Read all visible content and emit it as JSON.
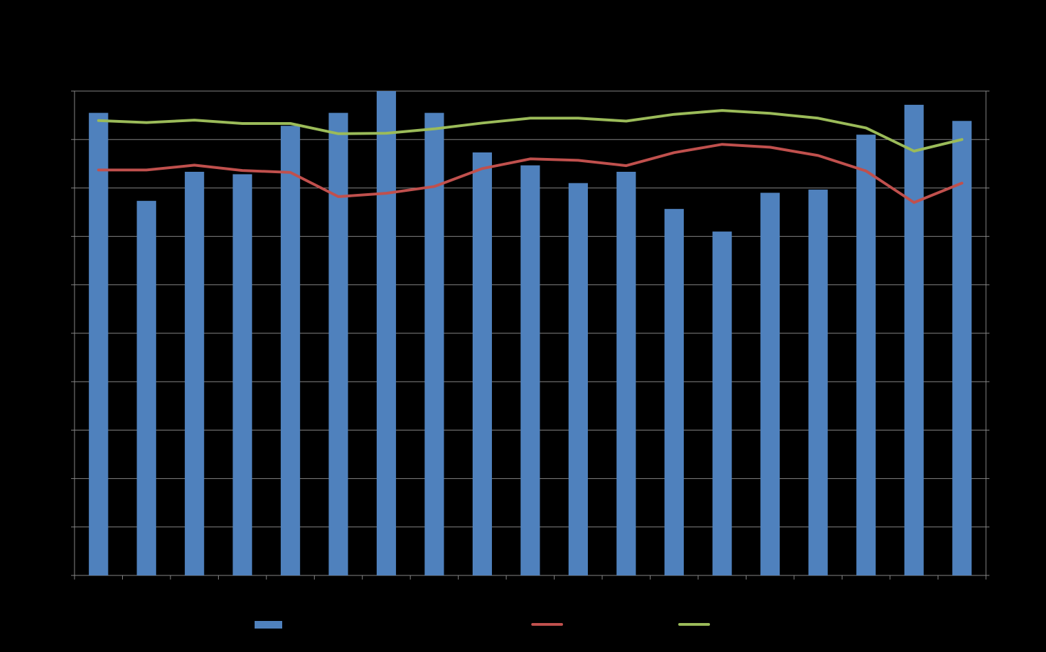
{
  "chart_data": {
    "type": "bar",
    "title": "",
    "xlabel": "",
    "ylabel": "",
    "grid": true,
    "legend_position": "bottom",
    "bar_value_range": [
      0,
      6
    ],
    "line_value_range": [
      0,
      10
    ],
    "categories": [
      "",
      "",
      "",
      "",
      "",
      "",
      "",
      "",
      "",
      "",
      "",
      "",
      "",
      "",
      "",
      "",
      "",
      "",
      ""
    ],
    "series": [
      {
        "type": "bar",
        "color": "#4F81BD",
        "values": [
          5.73,
          4.64,
          5.0,
          4.97,
          5.57,
          5.73,
          6.0,
          5.73,
          5.24,
          5.08,
          4.86,
          5.0,
          4.54,
          4.26,
          4.74,
          4.78,
          5.46,
          5.83,
          5.63
        ]
      },
      {
        "type": "line",
        "color": "#C0504D",
        "values": [
          8.37,
          8.37,
          8.47,
          8.36,
          8.32,
          7.82,
          7.89,
          8.03,
          8.4,
          8.6,
          8.57,
          8.46,
          8.73,
          8.9,
          8.84,
          8.67,
          8.35,
          7.7,
          8.1
        ]
      },
      {
        "type": "line",
        "color": "#9BBB59",
        "values": [
          9.39,
          9.35,
          9.4,
          9.33,
          9.33,
          9.12,
          9.13,
          9.22,
          9.34,
          9.44,
          9.44,
          9.38,
          9.52,
          9.6,
          9.54,
          9.44,
          9.24,
          8.76,
          9.0
        ]
      }
    ]
  }
}
